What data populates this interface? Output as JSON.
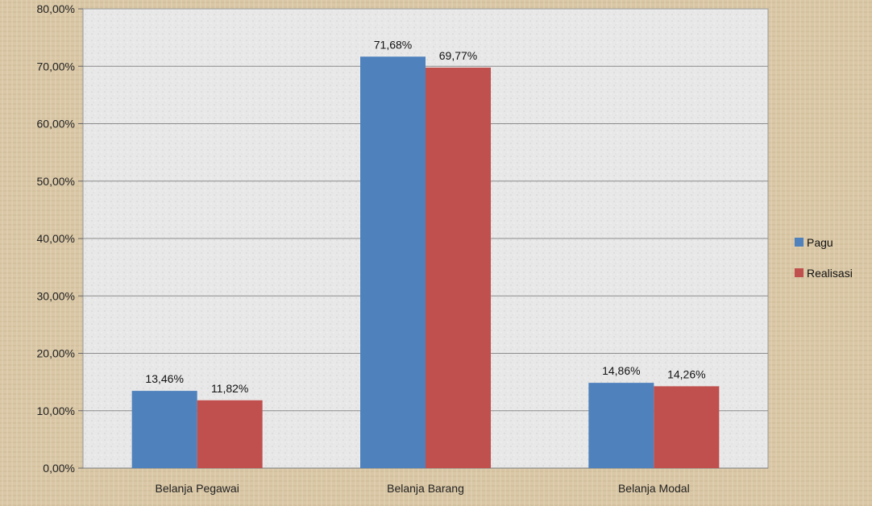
{
  "chart_data": {
    "type": "bar",
    "categories": [
      "Belanja Pegawai",
      "Belanja Barang",
      "Belanja Modal"
    ],
    "series": [
      {
        "name": "Pagu",
        "values": [
          13.46,
          71.68,
          14.86
        ],
        "labels": [
          "13,46%",
          "71,68%",
          "14,86%"
        ],
        "color": "#4f81bd"
      },
      {
        "name": "Realisasi",
        "values": [
          11.82,
          69.77,
          14.26
        ],
        "labels": [
          "11,82%",
          "69,77%",
          "14,26%"
        ],
        "color": "#c0504d"
      }
    ],
    "ylim": [
      0,
      80
    ],
    "yticks": [
      {
        "value": 0,
        "label": "0,00%"
      },
      {
        "value": 10,
        "label": "10,00%"
      },
      {
        "value": 20,
        "label": "20,00%"
      },
      {
        "value": 30,
        "label": "30,00%"
      },
      {
        "value": 40,
        "label": "40,00%"
      },
      {
        "value": 50,
        "label": "50,00%"
      },
      {
        "value": 60,
        "label": "60,00%"
      },
      {
        "value": 70,
        "label": "70,00%"
      },
      {
        "value": 80,
        "label": "80,00%"
      }
    ],
    "title": "",
    "xlabel": "",
    "ylabel": "",
    "grid": true,
    "legend_position": "right"
  },
  "colors": {
    "outer_background": "#d9c7a6",
    "plot_background": "#e6e6e6",
    "gridline": "#8c8c8c"
  }
}
